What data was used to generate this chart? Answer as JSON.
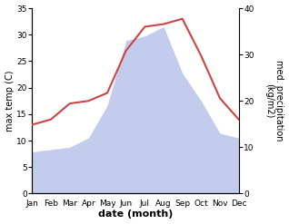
{
  "months": [
    "Jan",
    "Feb",
    "Mar",
    "Apr",
    "May",
    "Jun",
    "Jul",
    "Aug",
    "Sep",
    "Oct",
    "Nov",
    "Dec"
  ],
  "temperature": [
    13.0,
    14.0,
    17.0,
    17.5,
    19.0,
    27.0,
    31.5,
    32.0,
    33.0,
    26.0,
    18.0,
    14.0
  ],
  "precipitation": [
    9.0,
    9.5,
    10.0,
    12.0,
    19.0,
    33.0,
    34.0,
    36.0,
    26.0,
    20.0,
    13.0,
    12.0
  ],
  "temp_color": "#cc4444",
  "precip_color": "#b0bce8",
  "temp_ylim": [
    0,
    35
  ],
  "precip_ylim": [
    0,
    40
  ],
  "temp_yticks": [
    0,
    5,
    10,
    15,
    20,
    25,
    30,
    35
  ],
  "precip_yticks": [
    0,
    10,
    20,
    30,
    40
  ],
  "xlabel": "date (month)",
  "ylabel_left": "max temp (C)",
  "ylabel_right": "med. precipitation\n(kg/m2)",
  "background_color": "#ffffff",
  "line_width": 1.5,
  "font_size_ticks": 6.5,
  "font_size_label": 7.0,
  "font_size_xlabel": 8.0
}
